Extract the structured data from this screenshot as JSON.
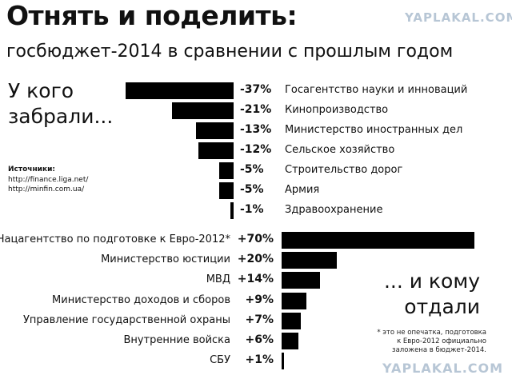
{
  "title": "Отнять и поделить:",
  "subtitle": "госбюджет-2014 в сравнении с прошлым годом",
  "watermark": "YAPLAKAL.COM",
  "left_heading": [
    "У кого",
    "забрали..."
  ],
  "right_heading": [
    "... и кому",
    "отдали"
  ],
  "sources": {
    "label": "Источники:",
    "links": [
      "http://finance.liga.net/",
      "http://minfin.com.ua/"
    ]
  },
  "footnote": [
    "* это не опечатка, подготовка",
    "к Евро-2012 официально",
    "заложена в бюджет-2014."
  ],
  "chart_data": [
    {
      "type": "bar",
      "orientation": "horizontal",
      "title": "У кого забрали...",
      "categories": [
        "Госагентство науки и инноваций",
        "Кинопроизводство",
        "Министерство иностранных дел",
        "Сельское хозяйство",
        "Строительство дорог",
        "Армия",
        "Здравоохранение"
      ],
      "values": [
        -37,
        -21,
        -13,
        -12,
        -5,
        -5,
        -1
      ],
      "labels": [
        "-37%",
        "-21%",
        "-13%",
        "-12%",
        "-5%",
        "-5%",
        "-1%"
      ],
      "color": "#000000"
    },
    {
      "type": "bar",
      "orientation": "horizontal",
      "title": "... и кому отдали",
      "categories": [
        "Нацагентство по подготовке к  Евро-2012*",
        "Министерство юстиции",
        "МВД",
        "Министерство доходов и сборов",
        "Управление государственной охраны",
        "Внутренние войска",
        "СБУ"
      ],
      "values": [
        70,
        20,
        14,
        9,
        7,
        6,
        1
      ],
      "labels": [
        "+70%",
        "+20%",
        "+14%",
        "+9%",
        "+7%",
        "+6%",
        "+1%"
      ],
      "color": "#000000"
    }
  ]
}
